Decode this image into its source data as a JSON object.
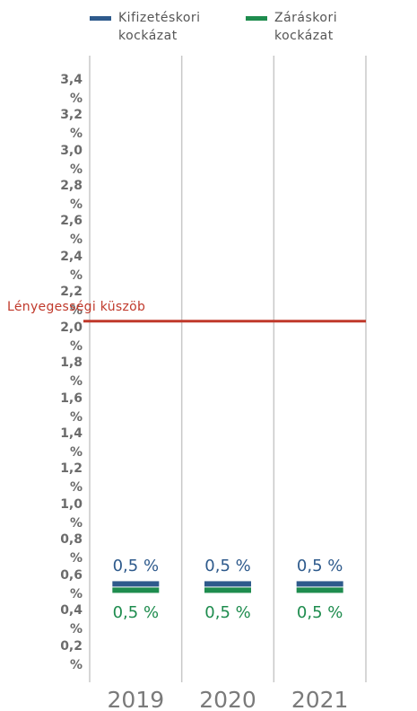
{
  "chart_data": {
    "type": "marker",
    "categories": [
      "2019",
      "2020",
      "2021"
    ],
    "series": [
      {
        "name": "Kifizetéskori kockázat",
        "color": "#2e5a8c",
        "values": [
          0.5,
          0.5,
          0.5
        ],
        "value_labels": [
          "0,5 %",
          "0,5 %",
          "0,5 %"
        ]
      },
      {
        "name": "Záráskori kockázat",
        "color": "#1e8c4e",
        "values": [
          0.5,
          0.5,
          0.5
        ],
        "value_labels": [
          "0,5 %",
          "0,5 %",
          "0,5 %"
        ]
      }
    ],
    "ylim": [
      0,
      3.5
    ],
    "yticks": [
      {
        "value": 0.2,
        "label": "0,2 %"
      },
      {
        "value": 0.4,
        "label": "0,4 %"
      },
      {
        "value": 0.6,
        "label": "0,6 %"
      },
      {
        "value": 0.8,
        "label": "0,8 %"
      },
      {
        "value": 1.0,
        "label": "1,0 %"
      },
      {
        "value": 1.2,
        "label": "1,2 %"
      },
      {
        "value": 1.4,
        "label": "1,4 %"
      },
      {
        "value": 1.6,
        "label": "1,6 %"
      },
      {
        "value": 1.8,
        "label": "1,8 %"
      },
      {
        "value": 2.0,
        "label": "2,0 %"
      },
      {
        "value": 2.2,
        "label": "2,2 %"
      },
      {
        "value": 2.4,
        "label": "2,4 %"
      },
      {
        "value": 2.6,
        "label": "2,6 %"
      },
      {
        "value": 2.8,
        "label": "2,8 %"
      },
      {
        "value": 3.0,
        "label": "3,0 %"
      },
      {
        "value": 3.2,
        "label": "3,2 %"
      },
      {
        "value": 3.4,
        "label": "3,4 %"
      }
    ],
    "threshold": {
      "label": "Lényegességi küszöb",
      "value": 2.0,
      "color": "#c0392b"
    },
    "legend": "top"
  }
}
